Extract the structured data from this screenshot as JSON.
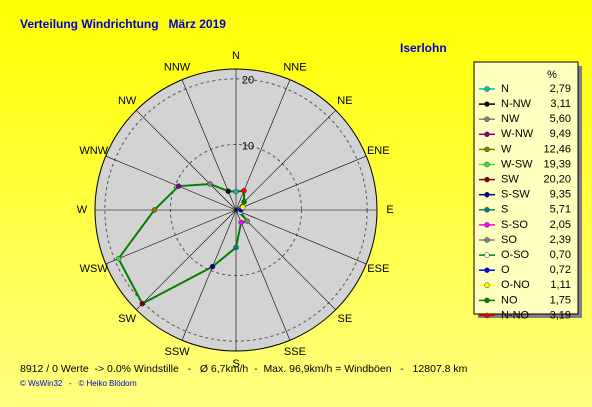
{
  "chart_data": {
    "type": "radar",
    "title": "Verteilung Windrichtung   März 2019",
    "subtitle": "Iserlohn",
    "direction": "counterclockwise",
    "categories": [
      "N",
      "N-NW",
      "NW",
      "W-NW",
      "W",
      "W-SW",
      "SW",
      "S-SW",
      "S",
      "S-SO",
      "SO",
      "O-SO",
      "O",
      "O-NO",
      "NO",
      "N-NO"
    ],
    "axis_labels": [
      "N",
      "NNW",
      "NW",
      "WNW",
      "W",
      "WSW",
      "SW",
      "SSW",
      "S",
      "SSE",
      "SE",
      "ESE",
      "E",
      "ENE",
      "NE",
      "NNE"
    ],
    "series": [
      {
        "color": "#008000",
        "values": [
          2.79,
          3.11,
          5.6,
          9.49,
          12.46,
          19.39,
          20.2,
          9.35,
          5.71,
          2.05,
          2.39,
          0.7,
          0.72,
          1.11,
          1.75,
          3.19
        ],
        "value_labels": [
          "2,79",
          "3,11",
          "5,60",
          "9,49",
          "12,46",
          "19,39",
          "20,20",
          "9,35",
          "5,71",
          "2,05",
          "2,39",
          "0,70",
          "0,72",
          "1,11",
          "1,75",
          "3,19"
        ],
        "point_colors": [
          "#00c0c0",
          "#000000",
          "#808080",
          "#800080",
          "#808000",
          "#40e040",
          "#800000",
          "#000080",
          "#008080",
          "#ff00ff",
          "#808080",
          "#ffffff",
          "#0000ff",
          "#ffff00",
          "#008000",
          "#ff0000"
        ]
      }
    ],
    "legend_title": "%",
    "rlim": [
      0,
      21.5
    ],
    "rticks": [
      10,
      20
    ],
    "grid": true,
    "annotations": [
      "8912 / 0 Werte  -> 0.0% Windstille   -   Ø 6,7km/h  -  Max. 96,9km/h = Windböen   -   12807.8 km",
      "© WsWin32   -   © Heiko Blödorn"
    ]
  }
}
